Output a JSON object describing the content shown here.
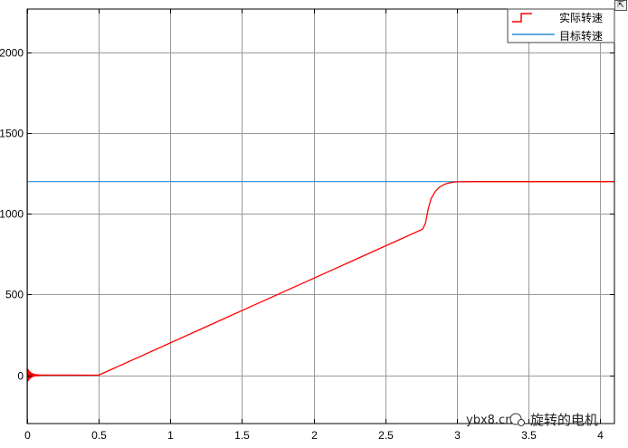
{
  "chart_data": {
    "type": "line",
    "title": "",
    "xlabel": "",
    "ylabel": "",
    "xlim": [
      0,
      4.1
    ],
    "ylim": [
      -300,
      2270
    ],
    "x_ticks": [
      0,
      0.5,
      1,
      1.5,
      2,
      2.5,
      3,
      3.5,
      4
    ],
    "x_tick_labels": [
      "0",
      "0.5",
      "1",
      "1.5",
      "2",
      "2.5",
      "3",
      "3.5",
      "4"
    ],
    "y_ticks": [
      0,
      500,
      1000,
      1500,
      2000
    ],
    "y_tick_labels": [
      "0",
      "500",
      "1000",
      "1500",
      "2000"
    ],
    "grid": true,
    "legend_position": "top-right",
    "series": [
      {
        "name": "实际转速",
        "color": "#ff0000",
        "x": [
          0.5,
          2.76,
          2.78,
          2.8,
          2.82,
          2.85,
          2.88,
          2.92,
          2.96,
          3.0,
          3.1,
          4.1
        ],
        "y": [
          0,
          905,
          940,
          1030,
          1095,
          1140,
          1168,
          1186,
          1195,
          1199,
          1200,
          1200
        ],
        "startup_oscillation": {
          "x_start": 0,
          "x_end": 0.1,
          "amplitude": 45
        },
        "initial_value": 0
      },
      {
        "name": "目标转速",
        "color": "#2a8fd6",
        "x": [
          0,
          4.1
        ],
        "y": [
          1200,
          1200
        ]
      }
    ]
  },
  "watermark": {
    "site": "ybx8.cn",
    "name": "旋转的电机"
  },
  "corner_button_symbol": "⇱"
}
